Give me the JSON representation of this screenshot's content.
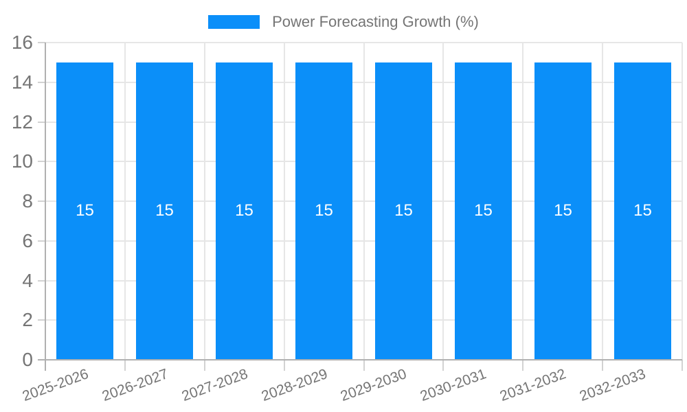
{
  "chart_data": {
    "type": "bar",
    "title": "Power Forecasting Growth (%)",
    "legend": {
      "label": "Power Forecasting Growth (%)",
      "position": "top"
    },
    "categories": [
      "2025-2026",
      "2026-2027",
      "2027-2028",
      "2028-2029",
      "2029-2030",
      "2030-2031",
      "2031-2032",
      "2032-2033"
    ],
    "series": [
      {
        "name": "Power Forecasting Growth (%)",
        "values": [
          15,
          15,
          15,
          15,
          15,
          15,
          15,
          15
        ]
      }
    ],
    "bar_value_labels": [
      "15",
      "15",
      "15",
      "15",
      "15",
      "15",
      "15",
      "15"
    ],
    "xlabel": "",
    "ylabel": "",
    "ylim": [
      0,
      16
    ],
    "yticks": [
      0,
      2,
      4,
      6,
      8,
      10,
      12,
      14,
      16
    ],
    "grid": true,
    "colors": {
      "bar": "#0b8ff9",
      "bar_label_text": "#ffffff",
      "axis_text": "#757575",
      "legend_text": "#757575",
      "gridline": "#e6e6e6",
      "axis_line": "#b0b0b0",
      "tick": "#d2d2d2"
    }
  }
}
